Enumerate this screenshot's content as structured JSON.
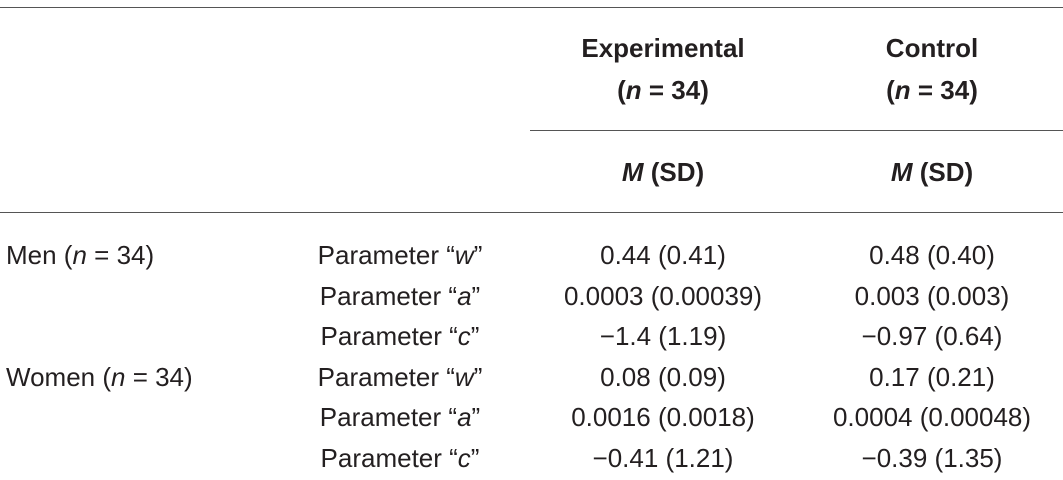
{
  "table": {
    "columns": [
      {
        "title": "Experimental",
        "size": [
          "(",
          "n",
          " = 34)"
        ],
        "stat": [
          "",
          "M",
          " (SD)"
        ]
      },
      {
        "title": "Control",
        "size": [
          "(",
          "n",
          " = 34)"
        ],
        "stat": [
          "",
          "M",
          " (SD)"
        ]
      }
    ],
    "groups": [
      {
        "label": [
          "Men (",
          "n",
          " = 34)"
        ],
        "rows": [
          {
            "parameter": [
              "Parameter “",
              "w",
              "”"
            ],
            "values": [
              "0.44 (0.41)",
              "0.48 (0.40)"
            ]
          },
          {
            "parameter": [
              "Parameter “",
              "a",
              "”"
            ],
            "values": [
              "0.0003 (0.00039)",
              "0.003 (0.003)"
            ]
          },
          {
            "parameter": [
              "Parameter “",
              "c",
              "”"
            ],
            "values": [
              "−1.4 (1.19)",
              "−0.97 (0.64)"
            ]
          }
        ]
      },
      {
        "label": [
          "Women (",
          "n",
          " = 34)"
        ],
        "rows": [
          {
            "parameter": [
              "Parameter “",
              "w",
              "”"
            ],
            "values": [
              "0.08 (0.09)",
              "0.17 (0.21)"
            ]
          },
          {
            "parameter": [
              "Parameter “",
              "a",
              "”"
            ],
            "values": [
              "0.0016 (0.0018)",
              "0.0004 (0.00048)"
            ]
          },
          {
            "parameter": [
              "Parameter “",
              "c",
              "”"
            ],
            "values": [
              "−0.41 (1.21)",
              "−0.39 (1.35)"
            ]
          }
        ]
      }
    ]
  }
}
